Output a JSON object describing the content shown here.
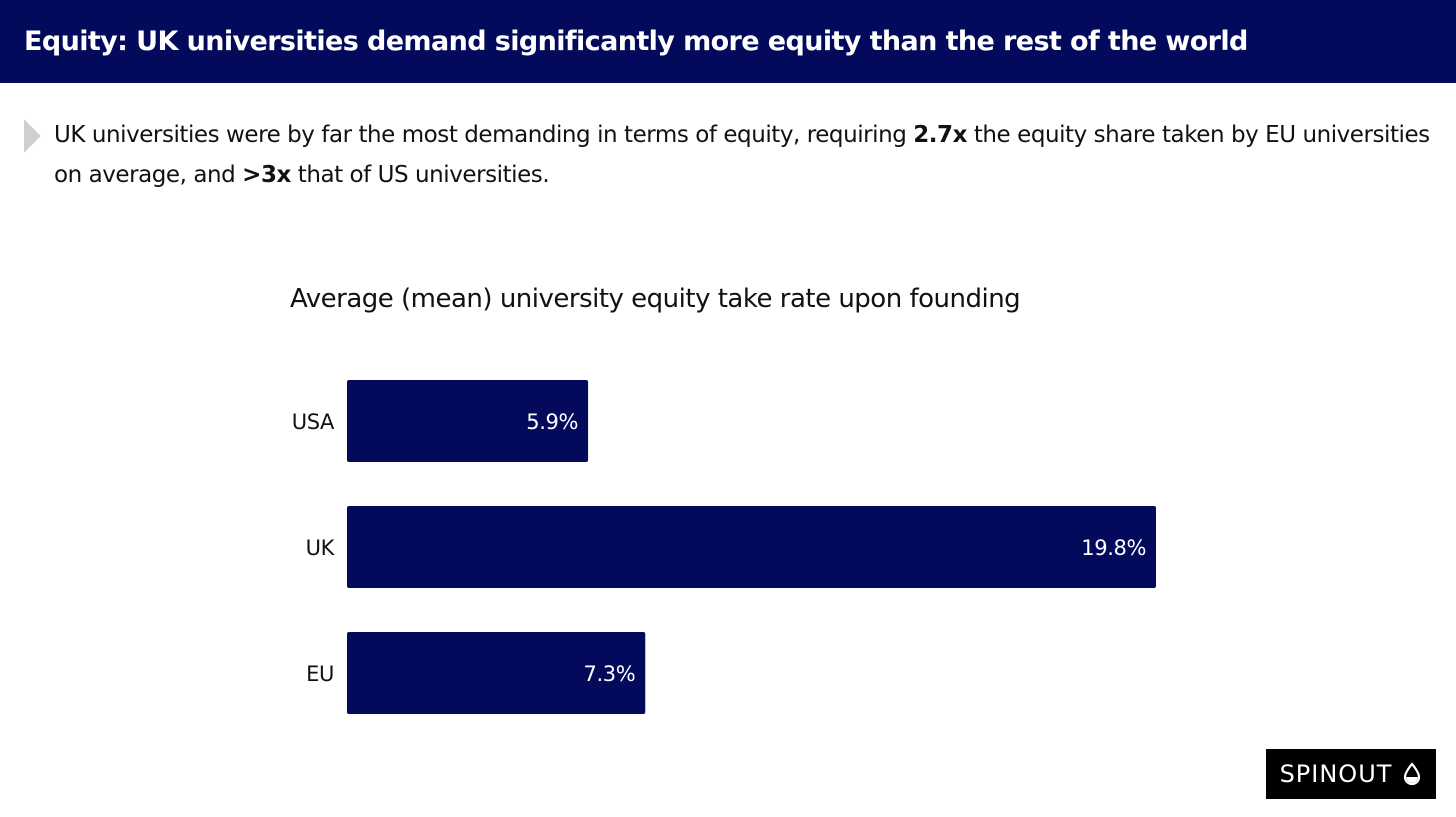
{
  "header": {
    "title": "Equity: UK universities demand significantly more equity than the rest of the world"
  },
  "summary": {
    "part1": "UK universities were by far the most demanding in terms of equity, requiring ",
    "bold1": "2.7x",
    "part2": " the equity share taken by EU universities on average, and ",
    "bold2": ">3x",
    "part3": " that of US universities."
  },
  "chart_data": {
    "type": "bar",
    "orientation": "horizontal",
    "title": "Average (mean) university equity take rate upon founding",
    "categories": [
      "USA",
      "UK",
      "EU"
    ],
    "values": [
      5.9,
      19.8,
      7.3
    ],
    "value_labels": [
      "5.9%",
      "19.8%",
      "7.3%"
    ],
    "xlabel": "",
    "ylabel": "",
    "xlim": [
      0,
      19.8
    ],
    "grid": false,
    "legend": "none",
    "bar_color": "#030a5c",
    "label_color": "#ffffff"
  },
  "logo": {
    "text": "SPINOUT",
    "icon": "drop-icon"
  },
  "colors": {
    "navy": "#030a5c",
    "bullet": "#cfcfcf"
  }
}
